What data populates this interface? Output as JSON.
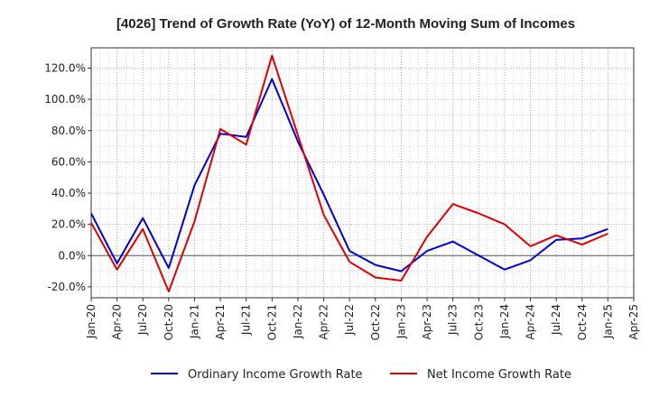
{
  "chart_data": {
    "type": "line",
    "title": "[4026]  Trend of Growth Rate (YoY) of 12-Month Moving Sum of Incomes",
    "xlabel": "",
    "ylabel": "",
    "x_tick_labels": [
      "Jan-20",
      "Apr-20",
      "Jul-20",
      "Oct-20",
      "Jan-21",
      "Apr-21",
      "Jul-21",
      "Oct-21",
      "Jan-22",
      "Apr-22",
      "Jul-22",
      "Oct-22",
      "Jan-23",
      "Apr-23",
      "Jul-23",
      "Oct-23",
      "Jan-24",
      "Apr-24",
      "Jul-24",
      "Oct-24",
      "Jan-25",
      "Apr-25"
    ],
    "y_tick_values": [
      -20,
      0,
      20,
      40,
      60,
      80,
      100,
      120
    ],
    "y_tick_labels": [
      "-20.0%",
      "0.0%",
      "20.0%",
      "40.0%",
      "60.0%",
      "80.0%",
      "100.0%",
      "120.0%"
    ],
    "ylim": [
      -27,
      133
    ],
    "grid": true,
    "legend_position": "bottom",
    "series": [
      {
        "name": "Ordinary Income Growth Rate",
        "color": "#0000cc",
        "values": [
          27,
          -5,
          24,
          -8,
          45,
          78,
          76,
          113,
          73,
          39,
          3,
          -6,
          -10,
          3,
          9,
          0,
          -9,
          -3,
          10,
          11,
          17
        ]
      },
      {
        "name": "Net Income Growth Rate",
        "color": "#dd0000",
        "values": [
          21,
          -9,
          17,
          -23,
          22,
          81,
          71,
          128,
          77,
          26,
          -4,
          -14,
          -16,
          12,
          33,
          27,
          20,
          6,
          13,
          7,
          14
        ]
      }
    ]
  }
}
